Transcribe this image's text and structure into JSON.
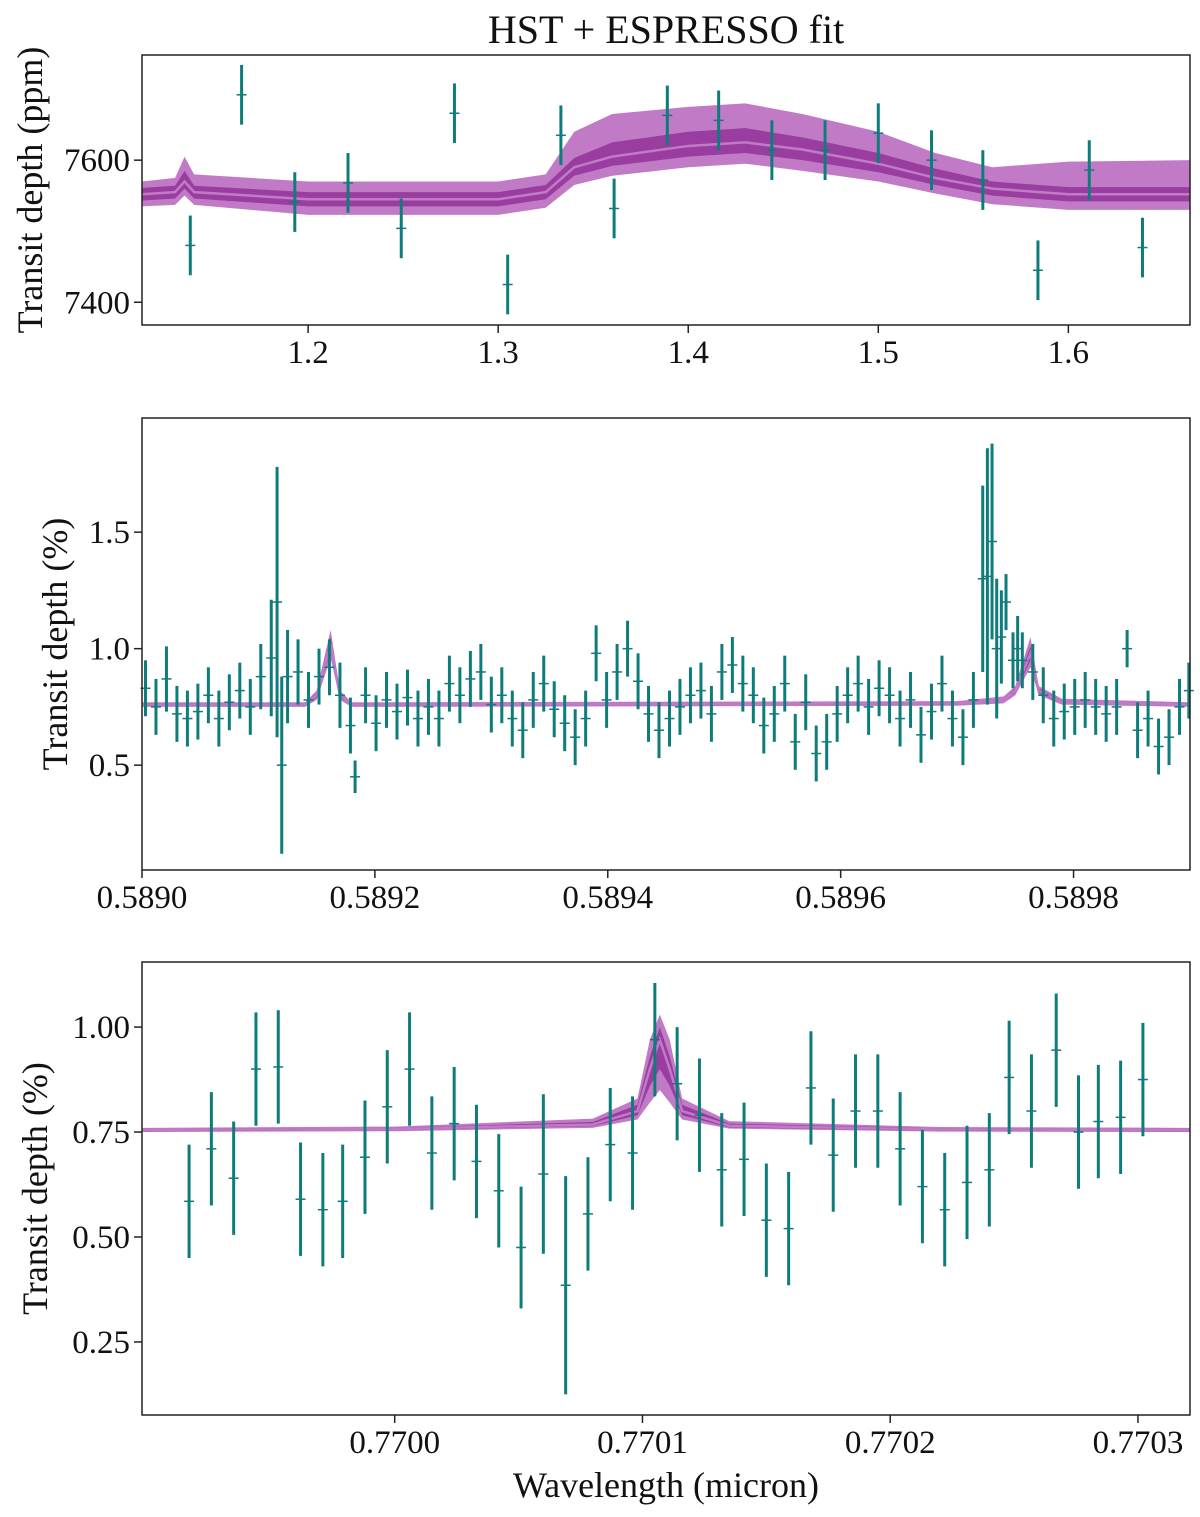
{
  "chart_data": [
    {
      "type": "errorbar-model",
      "title": "HST + ESPRESSO fit",
      "ylabel": "Transit depth (ppm)",
      "xlim": [
        1.1126,
        1.664
      ],
      "ylim": [
        7368,
        7748
      ],
      "xticks": [
        1.2,
        1.3,
        1.4,
        1.5,
        1.6
      ],
      "yticks": [
        7400,
        7600
      ],
      "color": "#0e7c7b",
      "x": [
        1.138,
        1.165,
        1.193,
        1.221,
        1.249,
        1.277,
        1.305,
        1.333,
        1.361,
        1.389,
        1.416,
        1.444,
        1.472,
        1.5,
        1.528,
        1.555,
        1.584,
        1.611,
        1.639
      ],
      "values": [
        7480,
        7692,
        7541,
        7568,
        7504,
        7666,
        7425,
        7635,
        7532,
        7663,
        7656,
        7614,
        7614,
        7638,
        7600,
        7572,
        7445,
        7586,
        7477
      ],
      "errors": [
        42,
        42,
        42,
        42,
        42,
        42,
        42,
        42,
        42,
        42,
        42,
        42,
        42,
        42,
        42,
        42,
        42,
        42,
        42
      ],
      "model": {
        "colors": [
          "#c17bc6",
          "#9a3da0"
        ],
        "x": [
          1.1126,
          1.13,
          1.135,
          1.14,
          1.2,
          1.3,
          1.325,
          1.34,
          1.36,
          1.4,
          1.43,
          1.46,
          1.5,
          1.53,
          1.56,
          1.6,
          1.664
        ],
        "median": [
          7552,
          7555,
          7570,
          7555,
          7545,
          7545,
          7555,
          7590,
          7605,
          7620,
          7625,
          7615,
          7595,
          7575,
          7560,
          7552,
          7552
        ],
        "lo1": [
          7543,
          7546,
          7560,
          7546,
          7535,
          7535,
          7545,
          7578,
          7592,
          7605,
          7610,
          7600,
          7583,
          7565,
          7550,
          7542,
          7542
        ],
        "hi1": [
          7561,
          7564,
          7585,
          7564,
          7555,
          7555,
          7565,
          7603,
          7625,
          7640,
          7645,
          7632,
          7610,
          7588,
          7570,
          7562,
          7562
        ],
        "lo2": [
          7535,
          7537,
          7550,
          7537,
          7523,
          7523,
          7533,
          7565,
          7578,
          7590,
          7595,
          7585,
          7570,
          7553,
          7538,
          7530,
          7530
        ],
        "hi2": [
          7570,
          7575,
          7605,
          7580,
          7570,
          7570,
          7580,
          7640,
          7665,
          7675,
          7680,
          7665,
          7640,
          7610,
          7590,
          7598,
          7600
        ]
      }
    },
    {
      "type": "errorbar-model",
      "ylabel": "Transit depth (%)",
      "xlim": [
        0.589,
        0.5899
      ],
      "ylim": [
        0.05,
        1.99
      ],
      "xticks": [
        {
          "value": 0.589,
          "label": "0.5890"
        },
        {
          "value": 0.5892,
          "label": "0.5892"
        },
        {
          "value": 0.5894,
          "label": "0.5894"
        },
        {
          "value": 0.5896,
          "label": "0.5896"
        },
        {
          "value": 0.5898,
          "label": "0.5898"
        }
      ],
      "yticks": [
        0.5,
        {
          "value": 1.0,
          "label": "1.0"
        },
        1.5
      ],
      "color": "#0e7c7b",
      "x": [
        0.589003,
        0.589012,
        0.589021,
        0.58903,
        0.589039,
        0.589048,
        0.589057,
        0.589066,
        0.589075,
        0.589084,
        0.589093,
        0.589102,
        0.589111,
        0.589116,
        0.58912,
        0.589125,
        0.589134,
        0.589143,
        0.589152,
        0.589161,
        0.58917,
        0.589179,
        0.589183,
        0.589192,
        0.589201,
        0.58921,
        0.589219,
        0.589228,
        0.589237,
        0.589246,
        0.589255,
        0.589264,
        0.589273,
        0.589282,
        0.589291,
        0.5893,
        0.589309,
        0.589318,
        0.589327,
        0.589336,
        0.589345,
        0.589354,
        0.589363,
        0.589372,
        0.589381,
        0.58939,
        0.589399,
        0.589408,
        0.589417,
        0.589426,
        0.589435,
        0.589444,
        0.589453,
        0.589462,
        0.589471,
        0.58948,
        0.589489,
        0.589498,
        0.589507,
        0.589516,
        0.589525,
        0.589534,
        0.589543,
        0.589552,
        0.589561,
        0.58957,
        0.589579,
        0.589588,
        0.589597,
        0.589606,
        0.589615,
        0.589624,
        0.589633,
        0.589642,
        0.589651,
        0.58966,
        0.589669,
        0.589678,
        0.589687,
        0.589696,
        0.589705,
        0.589714,
        0.589722,
        0.589726,
        0.58973,
        0.589734,
        0.589738,
        0.589742,
        0.589748,
        0.589752,
        0.589756,
        0.589765,
        0.589774,
        0.589783,
        0.589792,
        0.589801,
        0.58981,
        0.589819,
        0.589828,
        0.589837,
        0.589846,
        0.589855,
        0.589864,
        0.589873,
        0.589882,
        0.589891,
        0.589899
      ],
      "values": [
        0.83,
        0.75,
        0.87,
        0.72,
        0.7,
        0.73,
        0.8,
        0.7,
        0.77,
        0.82,
        0.75,
        0.88,
        0.96,
        1.2,
        0.5,
        0.88,
        0.9,
        0.78,
        0.88,
        0.92,
        0.8,
        0.67,
        0.45,
        0.8,
        0.68,
        0.78,
        0.73,
        0.79,
        0.7,
        0.75,
        0.7,
        0.85,
        0.8,
        0.87,
        0.9,
        0.76,
        0.8,
        0.7,
        0.65,
        0.78,
        0.85,
        0.74,
        0.68,
        0.62,
        0.7,
        0.98,
        0.78,
        0.9,
        1.0,
        0.86,
        0.72,
        0.65,
        0.7,
        0.75,
        0.8,
        0.82,
        0.72,
        0.9,
        0.93,
        0.85,
        0.8,
        0.67,
        0.72,
        0.85,
        0.6,
        0.77,
        0.55,
        0.6,
        0.72,
        0.8,
        0.85,
        0.75,
        0.83,
        0.8,
        0.7,
        0.78,
        0.63,
        0.73,
        0.85,
        0.7,
        0.62,
        0.78,
        1.3,
        1.31,
        1.46,
        1.0,
        1.05,
        1.2,
        0.95,
        1.0,
        0.95,
        0.9,
        0.8,
        0.7,
        0.73,
        0.75,
        0.78,
        0.75,
        0.72,
        0.75,
        1.0,
        0.65,
        0.7,
        0.58,
        0.62,
        0.75,
        0.82
      ],
      "errors": [
        0.12,
        0.12,
        0.14,
        0.12,
        0.12,
        0.12,
        0.12,
        0.12,
        0.12,
        0.12,
        0.12,
        0.14,
        0.25,
        0.58,
        0.38,
        0.2,
        0.14,
        0.12,
        0.12,
        0.12,
        0.14,
        0.12,
        0.07,
        0.12,
        0.12,
        0.12,
        0.12,
        0.12,
        0.12,
        0.12,
        0.12,
        0.12,
        0.12,
        0.12,
        0.12,
        0.12,
        0.12,
        0.12,
        0.12,
        0.12,
        0.12,
        0.12,
        0.12,
        0.12,
        0.12,
        0.12,
        0.12,
        0.12,
        0.12,
        0.12,
        0.12,
        0.12,
        0.12,
        0.12,
        0.12,
        0.12,
        0.12,
        0.12,
        0.12,
        0.12,
        0.12,
        0.12,
        0.12,
        0.12,
        0.12,
        0.12,
        0.12,
        0.12,
        0.12,
        0.12,
        0.12,
        0.12,
        0.12,
        0.12,
        0.12,
        0.12,
        0.12,
        0.12,
        0.12,
        0.12,
        0.12,
        0.12,
        0.4,
        0.55,
        0.42,
        0.3,
        0.2,
        0.12,
        0.12,
        0.14,
        0.12,
        0.12,
        0.12,
        0.12,
        0.12,
        0.12,
        0.12,
        0.12,
        0.12,
        0.12,
        0.08,
        0.12,
        0.12,
        0.12,
        0.12,
        0.12,
        0.12
      ],
      "model": {
        "colors": [
          "#c17bc6",
          "#9a3da0"
        ],
        "x": [
          0.589,
          0.58914,
          0.58915,
          0.589162,
          0.58917,
          0.58918,
          0.5897,
          0.58974,
          0.58975,
          0.589763,
          0.58977,
          0.58979,
          0.5899
        ],
        "median": [
          0.76,
          0.76,
          0.8,
          1.02,
          0.8,
          0.76,
          0.765,
          0.78,
          0.82,
          0.98,
          0.82,
          0.77,
          0.76
        ],
        "lo1": [
          0.755,
          0.755,
          0.79,
          0.99,
          0.79,
          0.755,
          0.76,
          0.775,
          0.81,
          0.95,
          0.81,
          0.765,
          0.755
        ],
        "hi1": [
          0.765,
          0.765,
          0.81,
          1.05,
          0.81,
          0.765,
          0.77,
          0.785,
          0.83,
          1.01,
          0.83,
          0.775,
          0.765
        ],
        "lo2": [
          0.75,
          0.75,
          0.78,
          0.96,
          0.78,
          0.75,
          0.755,
          0.765,
          0.8,
          0.92,
          0.8,
          0.76,
          0.75
        ],
        "hi2": [
          0.77,
          0.77,
          0.82,
          1.08,
          0.82,
          0.77,
          0.775,
          0.795,
          0.84,
          1.05,
          0.84,
          0.785,
          0.77
        ]
      }
    },
    {
      "type": "errorbar-model",
      "ylabel": "Transit depth (%)",
      "xlabel": "Wavelength (micron)",
      "xlim": [
        0.769898,
        0.770321
      ],
      "ylim": [
        0.076,
        1.155
      ],
      "xticks": [
        {
          "value": 0.77,
          "label": "0.7700"
        },
        0.7701,
        0.7702,
        0.7703
      ],
      "yticks": [
        {
          "value": 0.25,
          "label": "0.25"
        },
        {
          "value": 0.5,
          "label": "0.50"
        },
        {
          "value": 0.75,
          "label": "0.75"
        },
        {
          "value": 1.0,
          "label": "1.00"
        }
      ],
      "color": "#0e7c7b",
      "x": [
        0.769917,
        0.769926,
        0.769935,
        0.769944,
        0.769953,
        0.769962,
        0.769971,
        0.769979,
        0.769988,
        0.769997,
        0.770006,
        0.770015,
        0.770024,
        0.770033,
        0.770042,
        0.770051,
        0.77006,
        0.770069,
        0.770078,
        0.770087,
        0.770096,
        0.770105,
        0.770114,
        0.770123,
        0.770132,
        0.770141,
        0.77015,
        0.770159,
        0.770168,
        0.770177,
        0.770186,
        0.770195,
        0.770204,
        0.770213,
        0.770222,
        0.770231,
        0.77024,
        0.770248,
        0.770257,
        0.770267,
        0.770276,
        0.770284,
        0.770293,
        0.770302
      ],
      "values": [
        0.585,
        0.71,
        0.64,
        0.9,
        0.905,
        0.59,
        0.565,
        0.585,
        0.69,
        0.81,
        0.9,
        0.7,
        0.77,
        0.68,
        0.61,
        0.475,
        0.65,
        0.385,
        0.555,
        0.72,
        0.7,
        0.97,
        0.865,
        0.79,
        0.66,
        0.685,
        0.54,
        0.52,
        0.855,
        0.695,
        0.8,
        0.8,
        0.71,
        0.62,
        0.565,
        0.63,
        0.66,
        0.88,
        0.8,
        0.945,
        0.75,
        0.775,
        0.785,
        0.875
      ],
      "errors": [
        0.135,
        0.135,
        0.135,
        0.135,
        0.135,
        0.135,
        0.135,
        0.135,
        0.135,
        0.135,
        0.135,
        0.135,
        0.135,
        0.135,
        0.135,
        0.145,
        0.19,
        0.26,
        0.135,
        0.135,
        0.135,
        0.135,
        0.135,
        0.135,
        0.135,
        0.135,
        0.135,
        0.135,
        0.135,
        0.135,
        0.135,
        0.135,
        0.135,
        0.135,
        0.135,
        0.135,
        0.135,
        0.135,
        0.135,
        0.135,
        0.135,
        0.135,
        0.135,
        0.135
      ],
      "model": {
        "colors": [
          "#c17bc6",
          "#9a3da0"
        ],
        "x": [
          0.769898,
          0.77,
          0.77008,
          0.770098,
          0.770103,
          0.770107,
          0.770111,
          0.770116,
          0.770135,
          0.77022,
          0.770321
        ],
        "median": [
          0.755,
          0.757,
          0.768,
          0.8,
          0.9,
          0.97,
          0.9,
          0.8,
          0.765,
          0.756,
          0.755
        ],
        "lo1": [
          0.752,
          0.754,
          0.764,
          0.79,
          0.86,
          0.9,
          0.86,
          0.79,
          0.761,
          0.753,
          0.752
        ],
        "hi1": [
          0.758,
          0.76,
          0.774,
          0.815,
          0.93,
          1.0,
          0.93,
          0.815,
          0.77,
          0.759,
          0.758
        ],
        "lo2": [
          0.75,
          0.752,
          0.76,
          0.78,
          0.82,
          0.85,
          0.82,
          0.78,
          0.758,
          0.751,
          0.75
        ],
        "hi2": [
          0.76,
          0.763,
          0.782,
          0.83,
          0.97,
          1.03,
          0.97,
          0.83,
          0.776,
          0.762,
          0.76
        ]
      }
    }
  ]
}
